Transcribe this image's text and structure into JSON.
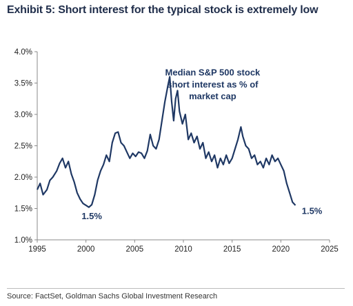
{
  "title": "Exhibit 5: Short interest for the typical stock is extremely low",
  "source": "Source: FactSet, Goldman Sachs Global Investment Research",
  "colors": {
    "line": "#1f3864",
    "annotation": "#1f3864",
    "axis": "#888888"
  },
  "chart_data": {
    "type": "line",
    "title": "",
    "xlabel": "",
    "ylabel": "",
    "xlim": [
      1995,
      2025
    ],
    "ylim": [
      1.0,
      4.0
    ],
    "x_ticks": [
      1995,
      2000,
      2005,
      2010,
      2015,
      2020,
      2025
    ],
    "x_tick_labels": [
      "1995",
      "2000",
      "2005",
      "2010",
      "2015",
      "2020",
      "2025"
    ],
    "y_ticks": [
      1.0,
      1.5,
      2.0,
      2.5,
      3.0,
      3.5,
      4.0
    ],
    "y_tick_labels": [
      "1.0%",
      "1.5%",
      "2.0%",
      "2.5%",
      "3.0%",
      "3.5%",
      "4.0%"
    ],
    "grid": false,
    "series": [
      {
        "name": "Median S&P 500 stock short interest as % of market cap",
        "points": [
          [
            1995.0,
            1.8
          ],
          [
            1995.3,
            1.9
          ],
          [
            1995.6,
            1.72
          ],
          [
            1996.0,
            1.8
          ],
          [
            1996.3,
            1.95
          ],
          [
            1996.6,
            2.0
          ],
          [
            1997.0,
            2.1
          ],
          [
            1997.3,
            2.22
          ],
          [
            1997.6,
            2.3
          ],
          [
            1997.9,
            2.15
          ],
          [
            1998.2,
            2.25
          ],
          [
            1998.5,
            2.05
          ],
          [
            1998.8,
            1.92
          ],
          [
            1999.1,
            1.75
          ],
          [
            1999.4,
            1.65
          ],
          [
            1999.7,
            1.58
          ],
          [
            2000.0,
            1.55
          ],
          [
            2000.3,
            1.52
          ],
          [
            2000.6,
            1.56
          ],
          [
            2000.9,
            1.72
          ],
          [
            2001.2,
            1.95
          ],
          [
            2001.5,
            2.1
          ],
          [
            2001.8,
            2.2
          ],
          [
            2002.1,
            2.35
          ],
          [
            2002.4,
            2.25
          ],
          [
            2002.7,
            2.55
          ],
          [
            2003.0,
            2.7
          ],
          [
            2003.3,
            2.72
          ],
          [
            2003.6,
            2.55
          ],
          [
            2003.9,
            2.5
          ],
          [
            2004.2,
            2.4
          ],
          [
            2004.5,
            2.3
          ],
          [
            2004.8,
            2.38
          ],
          [
            2005.1,
            2.33
          ],
          [
            2005.4,
            2.4
          ],
          [
            2005.7,
            2.38
          ],
          [
            2006.0,
            2.3
          ],
          [
            2006.3,
            2.42
          ],
          [
            2006.6,
            2.68
          ],
          [
            2006.9,
            2.5
          ],
          [
            2007.2,
            2.45
          ],
          [
            2007.5,
            2.6
          ],
          [
            2007.8,
            2.9
          ],
          [
            2008.1,
            3.2
          ],
          [
            2008.4,
            3.45
          ],
          [
            2008.6,
            3.6
          ],
          [
            2008.8,
            3.2
          ],
          [
            2009.0,
            2.9
          ],
          [
            2009.2,
            3.25
          ],
          [
            2009.4,
            3.38
          ],
          [
            2009.6,
            3.05
          ],
          [
            2009.9,
            2.85
          ],
          [
            2010.2,
            3.0
          ],
          [
            2010.5,
            2.6
          ],
          [
            2010.8,
            2.7
          ],
          [
            2011.1,
            2.55
          ],
          [
            2011.4,
            2.65
          ],
          [
            2011.7,
            2.45
          ],
          [
            2012.0,
            2.55
          ],
          [
            2012.3,
            2.3
          ],
          [
            2012.6,
            2.4
          ],
          [
            2012.9,
            2.25
          ],
          [
            2013.2,
            2.35
          ],
          [
            2013.5,
            2.15
          ],
          [
            2013.8,
            2.3
          ],
          [
            2014.1,
            2.2
          ],
          [
            2014.4,
            2.35
          ],
          [
            2014.7,
            2.22
          ],
          [
            2015.0,
            2.3
          ],
          [
            2015.3,
            2.45
          ],
          [
            2015.6,
            2.6
          ],
          [
            2015.9,
            2.8
          ],
          [
            2016.1,
            2.65
          ],
          [
            2016.4,
            2.5
          ],
          [
            2016.7,
            2.45
          ],
          [
            2017.0,
            2.3
          ],
          [
            2017.3,
            2.35
          ],
          [
            2017.6,
            2.2
          ],
          [
            2017.9,
            2.25
          ],
          [
            2018.2,
            2.15
          ],
          [
            2018.5,
            2.3
          ],
          [
            2018.8,
            2.2
          ],
          [
            2019.1,
            2.35
          ],
          [
            2019.4,
            2.25
          ],
          [
            2019.7,
            2.3
          ],
          [
            2020.0,
            2.2
          ],
          [
            2020.3,
            2.1
          ],
          [
            2020.6,
            1.9
          ],
          [
            2020.9,
            1.75
          ],
          [
            2021.2,
            1.6
          ],
          [
            2021.5,
            1.55
          ]
        ]
      }
    ],
    "annotations": [
      {
        "text": "Median S&P 500 stock",
        "x": 2013.0,
        "y": 3.62
      },
      {
        "text": "short interest as % of",
        "x": 2013.0,
        "y": 3.43
      },
      {
        "text": "market cap",
        "x": 2013.0,
        "y": 3.24
      },
      {
        "text": "1.5%",
        "x": 2000.6,
        "y": 1.33
      },
      {
        "text": "1.5%",
        "x": 2023.2,
        "y": 1.41
      }
    ]
  }
}
